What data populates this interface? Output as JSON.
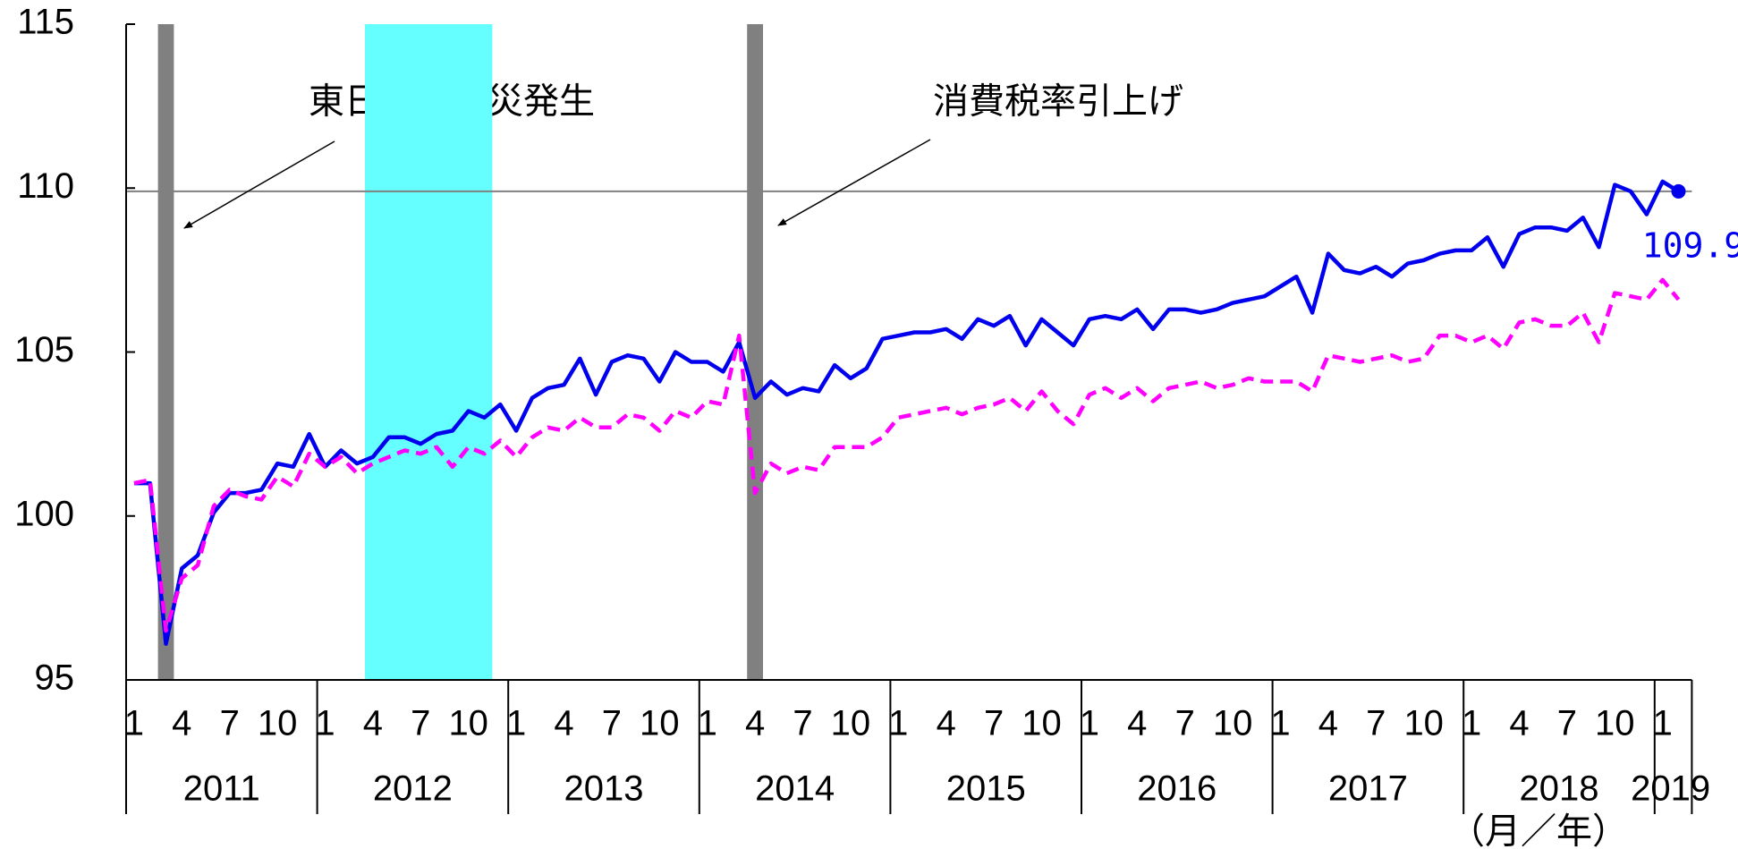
{
  "chart_data": {
    "type": "line",
    "categories": [
      "1",
      null,
      null,
      "4",
      null,
      null,
      "7",
      null,
      null,
      "10",
      null,
      null,
      "1",
      null,
      null,
      "4",
      null,
      null,
      "7",
      null,
      null,
      "10",
      null,
      null,
      "1",
      null,
      null,
      "4",
      null,
      null,
      "7",
      null,
      null,
      "10",
      null,
      null,
      "1",
      null,
      null,
      "4",
      null,
      null,
      "7",
      null,
      null,
      "10",
      null,
      null,
      "1",
      null,
      null,
      "4",
      null,
      null,
      "7",
      null,
      null,
      "10",
      null,
      null,
      "1",
      null,
      null,
      "4",
      null,
      null,
      "7",
      null,
      null,
      "10",
      null,
      null,
      "1",
      null,
      null,
      "4",
      null,
      null,
      "7",
      null,
      null,
      "10",
      null,
      null,
      "1",
      null,
      null,
      "4",
      null,
      null,
      "7",
      null,
      null,
      "10",
      null,
      null,
      "1",
      null
    ],
    "years": [
      "2011",
      "2012",
      "2013",
      "2014",
      "2015",
      "2016",
      "2017",
      "2018",
      "2019"
    ],
    "x_label": "（月／年）",
    "series": [
      {
        "color": "#0000ee",
        "dash": false,
        "values": [
          101.0,
          101.0,
          96.1,
          98.4,
          98.8,
          100.1,
          100.7,
          100.7,
          100.8,
          101.6,
          101.5,
          102.5,
          101.5,
          102.0,
          101.6,
          101.8,
          102.4,
          102.4,
          102.2,
          102.5,
          102.6,
          103.2,
          103.0,
          103.4,
          102.6,
          103.6,
          103.9,
          104.0,
          104.8,
          103.7,
          104.7,
          104.9,
          104.8,
          104.1,
          105.0,
          104.7,
          104.7,
          104.4,
          105.3,
          103.6,
          104.1,
          103.7,
          103.9,
          103.8,
          104.6,
          104.2,
          104.5,
          105.4,
          105.5,
          105.6,
          105.6,
          105.7,
          105.4,
          106.0,
          105.8,
          106.1,
          105.2,
          106.0,
          105.6,
          105.2,
          106.0,
          106.1,
          106.0,
          106.3,
          105.7,
          106.3,
          106.3,
          106.2,
          106.3,
          106.5,
          106.6,
          106.7,
          107.0,
          107.3,
          106.2,
          108.0,
          107.5,
          107.4,
          107.6,
          107.3,
          107.7,
          107.8,
          108.0,
          108.1,
          108.1,
          108.5,
          107.6,
          108.6,
          108.8,
          108.8,
          108.7,
          109.1,
          108.2,
          110.1,
          109.9,
          109.2,
          110.2,
          109.9
        ]
      },
      {
        "color": "#ff00ff",
        "dash": true,
        "values": [
          101.0,
          101.1,
          96.5,
          98.1,
          98.5,
          100.3,
          100.8,
          100.6,
          100.5,
          101.2,
          100.9,
          101.9,
          101.5,
          101.8,
          101.3,
          101.6,
          101.8,
          102.0,
          101.9,
          102.1,
          101.5,
          102.1,
          101.9,
          102.3,
          101.8,
          102.4,
          102.7,
          102.6,
          103.0,
          102.7,
          102.7,
          103.1,
          103.0,
          102.6,
          103.2,
          103.0,
          103.5,
          103.4,
          105.5,
          100.7,
          101.6,
          101.3,
          101.5,
          101.4,
          102.1,
          102.1,
          102.1,
          102.4,
          103.0,
          103.1,
          103.2,
          103.3,
          103.1,
          103.3,
          103.4,
          103.6,
          103.2,
          103.8,
          103.2,
          102.8,
          103.7,
          103.9,
          103.6,
          103.9,
          103.5,
          103.9,
          104.0,
          104.1,
          103.9,
          104.0,
          104.2,
          104.1,
          104.1,
          104.1,
          103.8,
          104.9,
          104.8,
          104.7,
          104.8,
          104.9,
          104.7,
          104.8,
          105.5,
          105.5,
          105.3,
          105.5,
          105.1,
          105.9,
          106.0,
          105.8,
          105.8,
          106.2,
          105.3,
          106.8,
          106.7,
          106.6,
          107.2,
          106.6
        ]
      }
    ],
    "ylim": [
      95,
      115
    ],
    "yticks": [
      95,
      100,
      105,
      110,
      115
    ],
    "reference_line": 109.9,
    "shaded_periods": [
      {
        "start": 2,
        "end": 2,
        "color": "#808080"
      },
      {
        "start": 15,
        "end": 22,
        "color": "#66ffff"
      },
      {
        "start": 39,
        "end": 39,
        "color": "#808080"
      }
    ],
    "annotations": [
      "東日本大震災発生",
      "消費税率引上げ"
    ]
  }
}
